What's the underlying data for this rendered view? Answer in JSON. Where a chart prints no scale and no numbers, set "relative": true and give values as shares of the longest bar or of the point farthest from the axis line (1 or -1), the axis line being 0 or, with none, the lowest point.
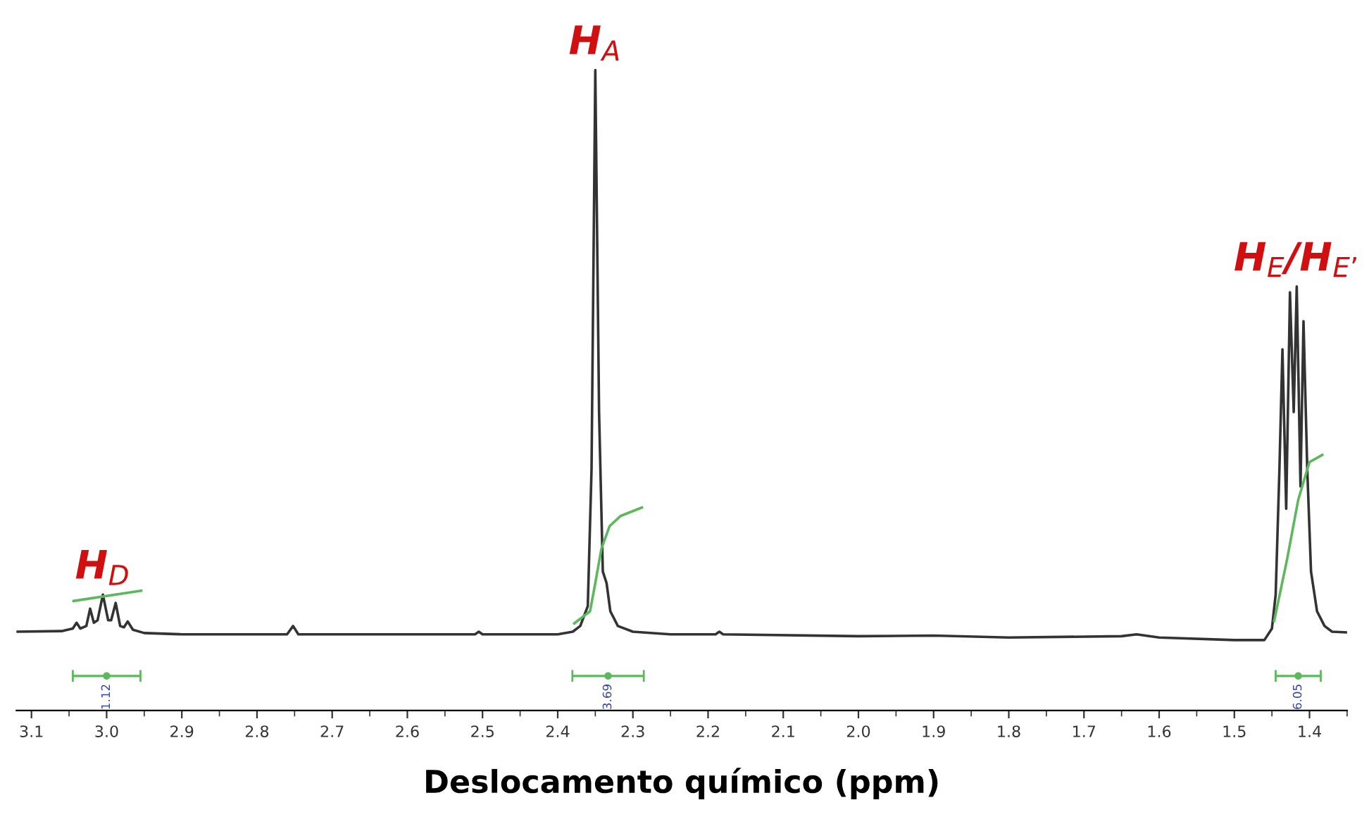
{
  "chart_data": {
    "type": "line",
    "relative": true,
    "xlabel": "Deslocamento químico (ppm)",
    "xlim": [
      3.12,
      1.35
    ],
    "xticks": [
      3.1,
      {
        "value": 3.0,
        "label": "3.0"
      },
      2.9,
      2.8,
      2.7,
      2.6,
      2.5,
      2.4,
      2.3,
      2.2,
      2.1,
      {
        "value": 2.0,
        "label": "2.0"
      },
      1.9,
      1.8,
      1.7,
      1.6,
      1.5,
      1.4
    ],
    "grid": false,
    "legend": false,
    "marker": "none",
    "line_style": "solid",
    "series": [
      {
        "color": "#333333",
        "x": [
          3.12,
          3.06,
          3.045,
          3.04,
          3.035,
          3.027,
          3.022,
          3.017,
          3.012,
          3.005,
          2.998,
          2.994,
          2.988,
          2.982,
          2.977,
          2.972,
          2.965,
          2.95,
          2.9,
          2.8,
          2.76,
          2.752,
          2.745,
          2.6,
          2.51,
          2.505,
          2.5,
          2.4,
          2.38,
          2.37,
          2.36,
          2.355,
          2.35,
          2.345,
          2.34,
          2.335,
          2.33,
          2.32,
          2.3,
          2.25,
          2.19,
          2.185,
          2.18,
          2.0,
          1.9,
          1.8,
          1.65,
          1.63,
          1.6,
          1.5,
          1.46,
          1.45,
          1.445,
          1.44,
          1.436,
          1.431,
          1.426,
          1.421,
          1.417,
          1.412,
          1.408,
          1.403,
          1.398,
          1.39,
          1.38,
          1.37,
          1.35
        ],
        "values": [
          0.123,
          0.124,
          0.128,
          0.137,
          0.128,
          0.132,
          0.159,
          0.137,
          0.141,
          0.181,
          0.141,
          0.141,
          0.168,
          0.132,
          0.13,
          0.139,
          0.126,
          0.121,
          0.119,
          0.119,
          0.119,
          0.132,
          0.119,
          0.119,
          0.119,
          0.123,
          0.119,
          0.119,
          0.123,
          0.132,
          0.163,
          0.377,
          1.0,
          0.466,
          0.217,
          0.199,
          0.155,
          0.132,
          0.123,
          0.119,
          0.119,
          0.123,
          0.119,
          0.116,
          0.117,
          0.114,
          0.116,
          0.119,
          0.114,
          0.11,
          0.11,
          0.128,
          0.181,
          0.377,
          0.564,
          0.315,
          0.653,
          0.466,
          0.662,
          0.35,
          0.608,
          0.377,
          0.217,
          0.155,
          0.132,
          0.123,
          0.122
        ]
      },
      {
        "color": "#5cb85c",
        "x": [
          3.044,
          2.954
        ],
        "values": [
          0.171,
          0.187
        ]
      },
      {
        "color": "#5cb85c",
        "x": [
          2.378,
          2.357,
          2.35,
          2.342,
          2.331,
          2.316,
          2.288
        ],
        "values": [
          0.136,
          0.155,
          0.199,
          0.252,
          0.288,
          0.304,
          0.317
        ]
      },
      {
        "color": "#5cb85c",
        "x": [
          1.447,
          1.43,
          1.415,
          1.4,
          1.383
        ],
        "values": [
          0.14,
          0.235,
          0.329,
          0.388,
          0.399
        ]
      },
      {
        "type": "scatter",
        "marker": "circle",
        "color": "#5cb85c",
        "x": [
          3.0,
          2.333,
          1.415
        ],
        "values": [
          0.054,
          0.054,
          0.054
        ],
        "xerrors": [
          0.045,
          0.0475,
          0.03
        ]
      }
    ],
    "annotations": [
      {
        "text": "H$_{D}$",
        "x": 3.005,
        "y": 0.181
      },
      {
        "text": "H$_{A}$",
        "x": 2.35,
        "y": 1.0
      },
      {
        "text": "H$_{E}$/H$_{E’}$",
        "x": 1.417,
        "y": 0.662
      },
      "1.12",
      "3.69",
      "6.05"
    ]
  }
}
